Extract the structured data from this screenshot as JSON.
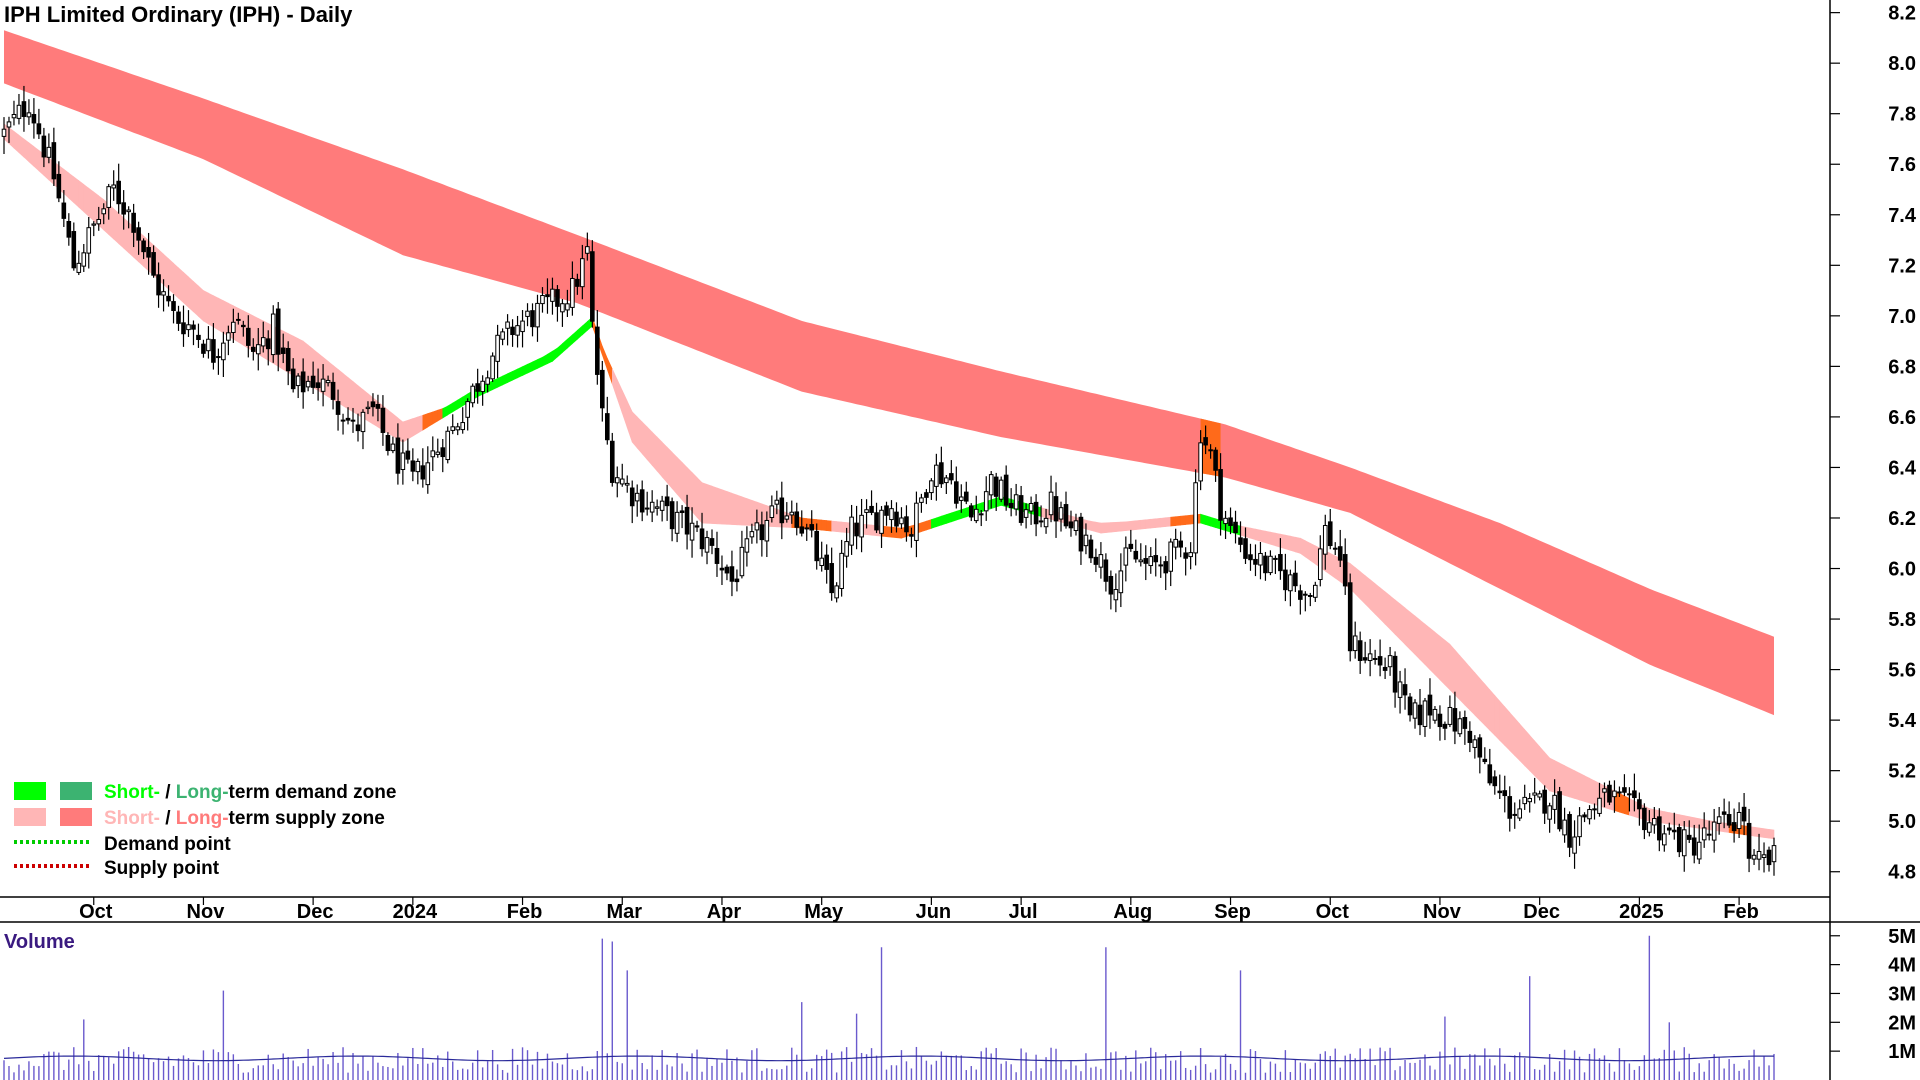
{
  "chart_data": {
    "type": "candlestick",
    "title": "IPH Limited Ordinary (IPH) - Daily",
    "price_axis": {
      "range": [
        4.7,
        8.25
      ],
      "ticks": [
        4.8,
        5.0,
        5.2,
        5.4,
        5.6,
        5.8,
        6.0,
        6.2,
        6.4,
        6.6,
        6.8,
        7.0,
        7.2,
        7.4,
        7.6,
        7.8,
        8.0,
        8.2
      ],
      "tick_labels": [
        "4.8",
        "5.0",
        "5.2",
        "5.4",
        "5.6",
        "5.8",
        "6.0",
        "6.2",
        "6.4",
        "6.6",
        "6.8",
        "7.0",
        "7.2",
        "7.4",
        "7.6",
        "7.8",
        "8.0",
        "8.2"
      ],
      "position": "right"
    },
    "time_axis": {
      "labels": [
        "Oct",
        "Nov",
        "Dec",
        "2024",
        "Feb",
        "Mar",
        "Apr",
        "May",
        "Jun",
        "Jul",
        "Aug",
        "Sep",
        "Oct",
        "Nov",
        "Dec",
        "2025",
        "Feb"
      ],
      "label_index": [
        18,
        40,
        62,
        82,
        104,
        124,
        144,
        164,
        186,
        204,
        226,
        246,
        266,
        288,
        308,
        328,
        348
      ]
    },
    "bar_count": 356,
    "price_anchors": [
      [
        0,
        7.72
      ],
      [
        5,
        7.85
      ],
      [
        10,
        7.55
      ],
      [
        14,
        7.2
      ],
      [
        18,
        7.35
      ],
      [
        22,
        7.5
      ],
      [
        26,
        7.38
      ],
      [
        30,
        7.15
      ],
      [
        34,
        7.0
      ],
      [
        38,
        6.95
      ],
      [
        42,
        6.85
      ],
      [
        46,
        7.0
      ],
      [
        50,
        6.85
      ],
      [
        54,
        6.95
      ],
      [
        58,
        6.7
      ],
      [
        62,
        6.75
      ],
      [
        66,
        6.7
      ],
      [
        70,
        6.55
      ],
      [
        74,
        6.62
      ],
      [
        78,
        6.45
      ],
      [
        82,
        6.35
      ],
      [
        86,
        6.45
      ],
      [
        90,
        6.55
      ],
      [
        94,
        6.7
      ],
      [
        98,
        6.85
      ],
      [
        102,
        6.95
      ],
      [
        106,
        7.0
      ],
      [
        110,
        7.05
      ],
      [
        114,
        7.1
      ],
      [
        117,
        7.25
      ],
      [
        118,
        6.95
      ],
      [
        120,
        6.6
      ],
      [
        122,
        6.4
      ],
      [
        126,
        6.3
      ],
      [
        130,
        6.25
      ],
      [
        134,
        6.2
      ],
      [
        138,
        6.15
      ],
      [
        142,
        6.08
      ],
      [
        146,
        5.95
      ],
      [
        150,
        6.1
      ],
      [
        154,
        6.2
      ],
      [
        158,
        6.25
      ],
      [
        162,
        6.1
      ],
      [
        166,
        5.9
      ],
      [
        170,
        6.15
      ],
      [
        174,
        6.2
      ],
      [
        178,
        6.25
      ],
      [
        182,
        6.15
      ],
      [
        186,
        6.4
      ],
      [
        190,
        6.35
      ],
      [
        194,
        6.2
      ],
      [
        198,
        6.35
      ],
      [
        202,
        6.25
      ],
      [
        206,
        6.2
      ],
      [
        210,
        6.25
      ],
      [
        214,
        6.15
      ],
      [
        218,
        6.1
      ],
      [
        222,
        5.95
      ],
      [
        226,
        6.05
      ],
      [
        230,
        6.0
      ],
      [
        234,
        6.05
      ],
      [
        238,
        6.1
      ],
      [
        240,
        6.55
      ],
      [
        242,
        6.45
      ],
      [
        244,
        6.25
      ],
      [
        246,
        6.15
      ],
      [
        250,
        6.05
      ],
      [
        254,
        6.0
      ],
      [
        258,
        5.95
      ],
      [
        262,
        5.9
      ],
      [
        265,
        6.15
      ],
      [
        268,
        6.05
      ],
      [
        270,
        5.7
      ],
      [
        274,
        5.65
      ],
      [
        278,
        5.6
      ],
      [
        282,
        5.4
      ],
      [
        286,
        5.45
      ],
      [
        290,
        5.4
      ],
      [
        294,
        5.35
      ],
      [
        298,
        5.15
      ],
      [
        302,
        5.05
      ],
      [
        306,
        5.05
      ],
      [
        310,
        5.1
      ],
      [
        314,
        4.95
      ],
      [
        318,
        5.05
      ],
      [
        322,
        5.1
      ],
      [
        326,
        5.05
      ],
      [
        330,
        5.0
      ],
      [
        334,
        4.95
      ],
      [
        338,
        4.9
      ],
      [
        342,
        4.95
      ],
      [
        346,
        5.0
      ],
      [
        349,
        5.02
      ],
      [
        350,
        4.82
      ],
      [
        355,
        4.85
      ]
    ],
    "short_term_zone": {
      "anchors": [
        [
          0,
          7.76,
          7.7
        ],
        [
          20,
          7.46,
          7.34
        ],
        [
          40,
          7.1,
          6.98
        ],
        [
          60,
          6.9,
          6.74
        ],
        [
          80,
          6.58,
          6.5
        ],
        [
          95,
          6.68,
          6.68
        ],
        [
          110,
          6.86,
          6.82
        ],
        [
          118,
          6.96,
          6.96
        ],
        [
          126,
          6.62,
          6.5
        ],
        [
          140,
          6.34,
          6.18
        ],
        [
          160,
          6.2,
          6.16
        ],
        [
          180,
          6.16,
          6.12
        ],
        [
          200,
          6.25,
          6.25
        ],
        [
          220,
          6.18,
          6.14
        ],
        [
          240,
          6.2,
          6.18
        ],
        [
          260,
          6.12,
          6.06
        ],
        [
          270,
          6.02,
          5.92
        ],
        [
          290,
          5.7,
          5.52
        ],
        [
          310,
          5.25,
          5.12
        ],
        [
          330,
          5.05,
          5.0
        ],
        [
          355,
          4.95,
          4.93
        ]
      ]
    },
    "long_term_zone": {
      "anchors": [
        [
          0,
          8.13,
          7.92
        ],
        [
          40,
          7.86,
          7.62
        ],
        [
          80,
          7.58,
          7.24
        ],
        [
          115,
          7.32,
          7.05
        ],
        [
          160,
          6.98,
          6.7
        ],
        [
          200,
          6.78,
          6.52
        ],
        [
          245,
          6.57,
          6.36
        ],
        [
          270,
          6.4,
          6.22
        ],
        [
          300,
          6.18,
          5.92
        ],
        [
          330,
          5.92,
          5.62
        ],
        [
          355,
          5.73,
          5.42
        ]
      ]
    },
    "legend": {
      "position": "bottom-left",
      "items": [
        {
          "label_parts": [
            "Short-",
            " / ",
            "Long-",
            "term demand zone"
          ],
          "colors": [
            "#00ff00",
            "#3cb371"
          ]
        },
        {
          "label_parts": [
            "Short-",
            " / ",
            "Long-",
            "term supply zone"
          ],
          "colors": [
            "#ffb6b6",
            "#ff7b7b"
          ]
        },
        {
          "label": "Demand point",
          "color": "#00cc00"
        },
        {
          "label": "Supply point",
          "color": "#cc0000"
        }
      ]
    },
    "volume": {
      "label": "Volume",
      "range": [
        0,
        5.2
      ],
      "ticks": [
        1,
        2,
        3,
        4,
        5
      ],
      "tick_labels": [
        "1M",
        "2M",
        "3M",
        "4M",
        "5M"
      ],
      "average_millions": 0.75,
      "spikes": [
        [
          16,
          2.1
        ],
        [
          44,
          3.1
        ],
        [
          120,
          4.9
        ],
        [
          122,
          4.8
        ],
        [
          125,
          3.8
        ],
        [
          160,
          2.7
        ],
        [
          171,
          2.3
        ],
        [
          176,
          4.6
        ],
        [
          221,
          4.6
        ],
        [
          248,
          3.8
        ],
        [
          289,
          2.2
        ],
        [
          306,
          3.6
        ],
        [
          330,
          5.0
        ],
        [
          334,
          2.0
        ]
      ]
    },
    "colors": {
      "candle": "#000000",
      "short_supply": "#ffb6b6",
      "long_supply": "#ff7b7b",
      "short_demand": "#00ff00",
      "long_demand": "#3cb371",
      "transition": "#ff6a1a",
      "volume_bar": "#6a5acd",
      "volume_avg": "#2a2a9a"
    }
  }
}
